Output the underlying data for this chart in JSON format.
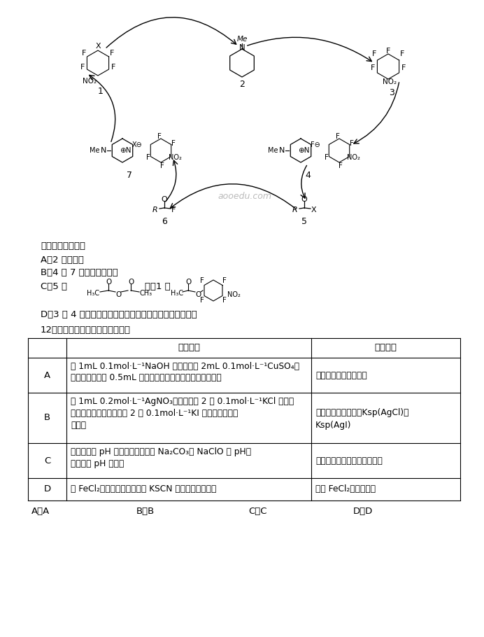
{
  "bg_color": "#ffffff",
  "fig_width": 6.92,
  "fig_height": 9.1,
  "dpi": 100,
  "watermark": "aooedu.com",
  "question_intro": "下列说法错误的是",
  "option_A": "A．2 是催化剂",
  "option_B": "B．4 和 7 都是反应中间体",
  "option_C_prefix": "C．5 为",
  "option_C_middle": "时，1 是",
  "option_D": "D．3 向 4 的转化过程中有非极性键与极性键的断裂与形成",
  "q12_header": "12．下列实验能达到预期目的的是",
  "table_col1_header": "实验内容",
  "table_col2_header": "实验目的",
  "row_A_label": "A",
  "row_A_line1": "向 1mL 0.1mol·L⁻¹NaOH 溶液中加入 2mL 0.1mol·L⁻¹CuSO₄溶",
  "row_A_line2": "液，振荡后滴加 0.5mL 葡萄糖溶液，加热后未出现红色沉淀",
  "row_A_purpose": "证明葡萄糖中不含醛基",
  "row_B_label": "B",
  "row_B_line1": "向 1mL 0.2mol·L⁻¹AgNO₃溶液中滴入 2 滴 0.1mol·L⁻¹KCl 溶液，",
  "row_B_line2": "产生白色沉淀后，再滴加 2 滴 0.1mol·L⁻¹KI 溶液，又生成黄",
  "row_B_line3": "色沉淀",
  "row_B_purpose1": "证明在相同温度下，Ksp(AgCl)＞",
  "row_B_purpose2": "Ksp(AgI)",
  "row_C_label": "C",
  "row_C_line1": "室温下，用 pH 试纸测定同浓度的 Na₂CO₃与 NaClO 的 pH，",
  "row_C_line2": "比较二者 pH 的大小",
  "row_C_purpose": "证明碳元素的非金属性弱于氯",
  "row_D_label": "D",
  "row_D_line1": "将 FeCl₂样品溶于盐酸，滴加 KSCN 溶液，溶液变红色",
  "row_D_purpose": "证明 FeCl₂样品已变质",
  "bottom_A": "A．A",
  "bottom_B": "B．B",
  "bottom_C": "C．C",
  "bottom_D": "D．D"
}
